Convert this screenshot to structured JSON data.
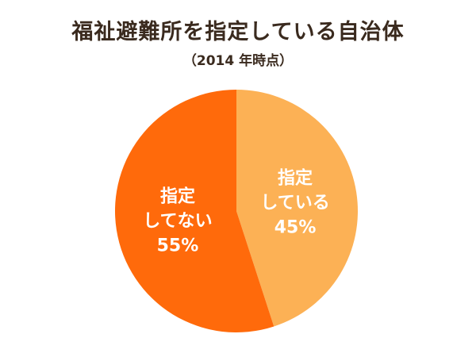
{
  "chart_data": {
    "type": "pie",
    "title": "福祉避難所を指定している自治体",
    "subtitle": "（2014 年時点）",
    "slices": [
      {
        "label_lines": [
          "指定",
          "している",
          "45%"
        ],
        "value": 45,
        "color": "#FCB155"
      },
      {
        "label_lines": [
          "指定",
          "してない",
          "55%"
        ],
        "value": 55,
        "color": "#FF6A0B"
      }
    ]
  }
}
